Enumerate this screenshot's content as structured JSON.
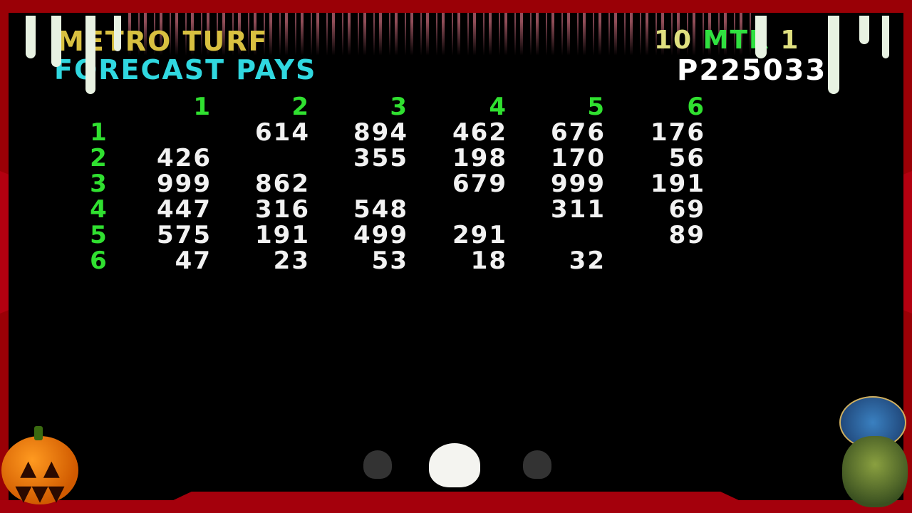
{
  "header": {
    "venue": "METRO TURF",
    "title": "FORECAST PAYS",
    "distance_number": "10",
    "distance_unit": "MTR",
    "distance_suffix": "1",
    "race_code": "P225033"
  },
  "table": {
    "columns": [
      "1",
      "2",
      "3",
      "4",
      "5",
      "6"
    ],
    "rows": [
      {
        "label": "1",
        "values": [
          "",
          "614",
          "894",
          "462",
          "676",
          "176"
        ]
      },
      {
        "label": "2",
        "values": [
          "426",
          "",
          "355",
          "198",
          "170",
          "56"
        ]
      },
      {
        "label": "3",
        "values": [
          "999",
          "862",
          "",
          "679",
          "999",
          "191"
        ]
      },
      {
        "label": "4",
        "values": [
          "447",
          "316",
          "548",
          "",
          "311",
          "69"
        ]
      },
      {
        "label": "5",
        "values": [
          "575",
          "191",
          "499",
          "291",
          "",
          "89"
        ]
      },
      {
        "label": "6",
        "values": [
          "47",
          "23",
          "53",
          "18",
          "32",
          ""
        ]
      }
    ]
  },
  "decorations": {
    "icons": [
      "pumpkin-icon",
      "skull-icon",
      "zombie-icon",
      "logo-badge"
    ],
    "colors": {
      "frame": "#9a0006",
      "venue": "#d8c040",
      "title": "#30d8e0",
      "labels": "#30e030",
      "values": "#f2f2f2"
    }
  }
}
